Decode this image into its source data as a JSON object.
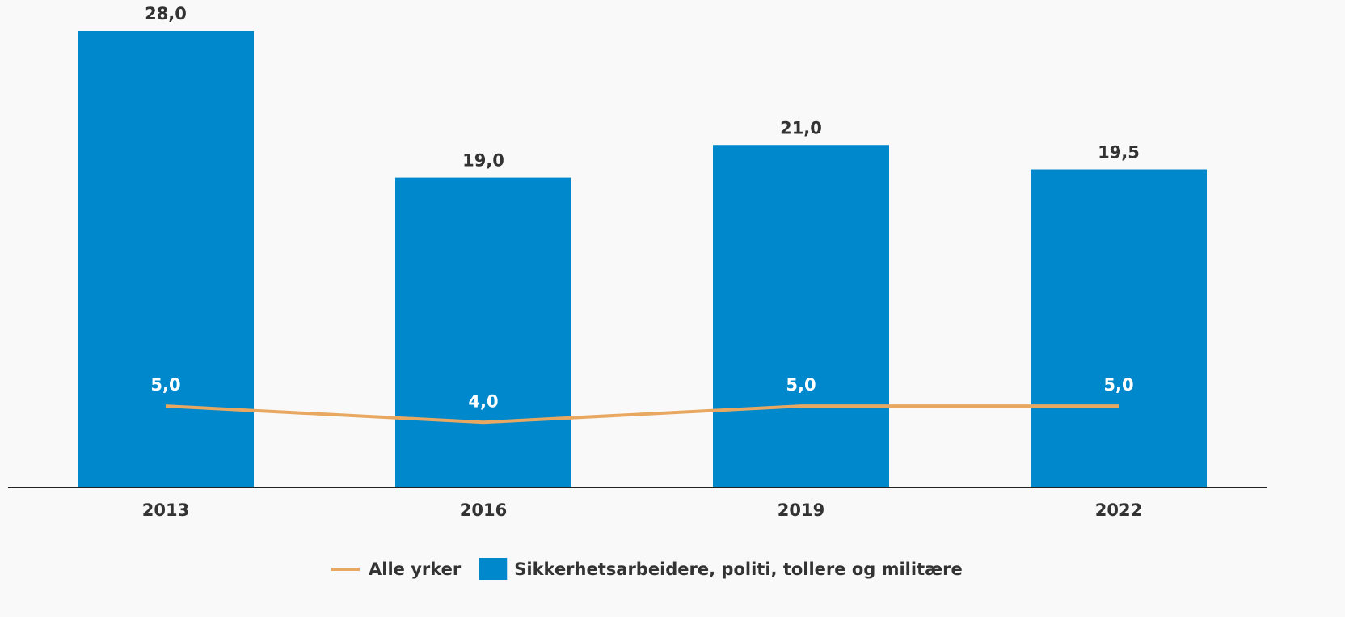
{
  "chart_data": {
    "type": "bar",
    "categories": [
      "2013",
      "2016",
      "2019",
      "2022"
    ],
    "series": [
      {
        "name": "Alle yrker",
        "type": "line",
        "color": "#e8a862",
        "values": [
          5,
          4,
          5,
          5
        ],
        "value_labels": [
          "5,0",
          "4,0",
          "5,0",
          "5,0"
        ]
      },
      {
        "name": "Sikkerhetsarbeidere, politi, tollere og militære",
        "type": "bar",
        "color": "#0088cc",
        "values": [
          28,
          19,
          21,
          19.5
        ],
        "value_labels": [
          "28,0",
          "19,0",
          "21,0",
          "19,5"
        ]
      }
    ],
    "legend": "bottom"
  }
}
